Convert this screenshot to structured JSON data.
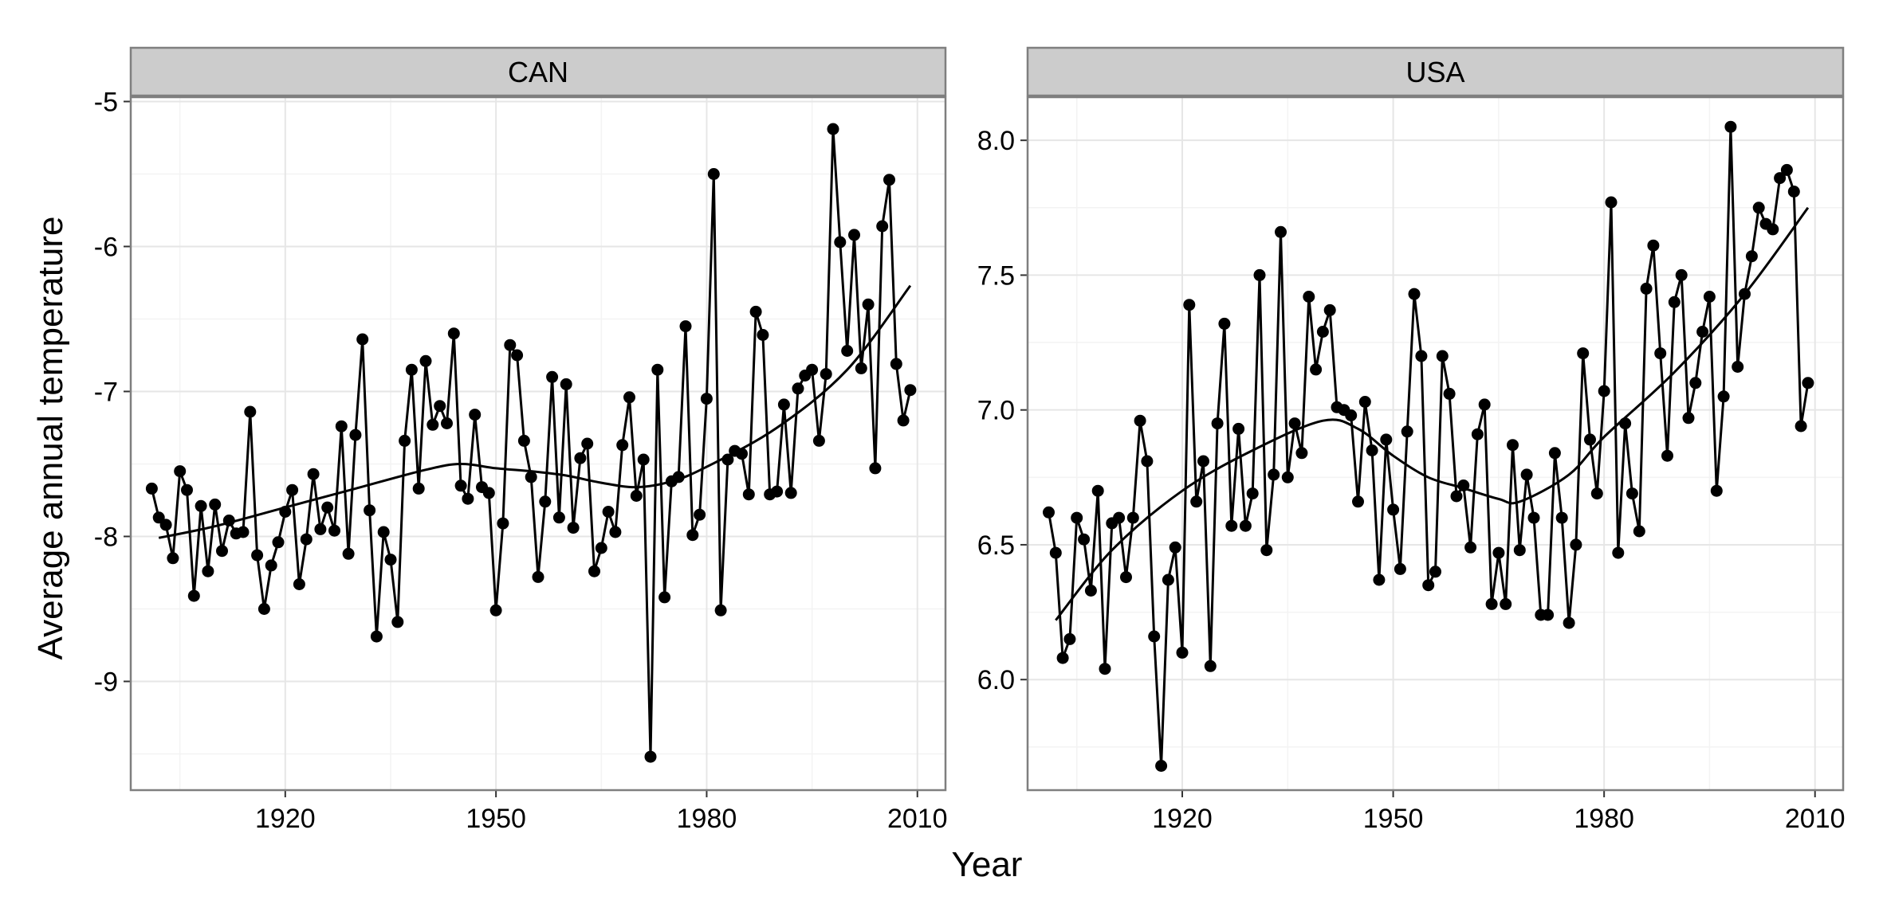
{
  "colors": {
    "background": "#ffffff",
    "panel_fill": "#ffffff",
    "panel_border": "#7f7f7f",
    "grid_major": "#e6e6e6",
    "grid_minor": "#f3f3f3",
    "strip_fill": "#cccccc",
    "strip_border": "#7f7f7f",
    "series_color": "#000000",
    "axis_tick": "#333333"
  },
  "chart_data": {
    "type": "line",
    "facet_layout": "1 row x 2 columns",
    "xlabel": "Year",
    "ylabel": "Average annual temperature",
    "legend": "none",
    "grid": true,
    "line_with_points": true,
    "smooth_trend": true,
    "x_ticks": [
      1920,
      1950,
      1980,
      2010
    ],
    "panels": [
      {
        "label": "CAN",
        "xlim": [
          1898,
          2014
        ],
        "ylim": [
          -9.75,
          -4.97
        ],
        "y_ticks": [
          -9,
          -8,
          -7,
          -6,
          -5
        ],
        "y_tick_labels": [
          "-9",
          "-8",
          "-7",
          "-6",
          "-5"
        ],
        "x": [
          1901,
          1902,
          1903,
          1904,
          1905,
          1906,
          1907,
          1908,
          1909,
          1910,
          1911,
          1912,
          1913,
          1914,
          1915,
          1916,
          1917,
          1918,
          1919,
          1920,
          1921,
          1922,
          1923,
          1924,
          1925,
          1926,
          1927,
          1928,
          1929,
          1930,
          1931,
          1932,
          1933,
          1934,
          1935,
          1936,
          1937,
          1938,
          1939,
          1940,
          1941,
          1942,
          1943,
          1944,
          1945,
          1946,
          1947,
          1948,
          1949,
          1950,
          1951,
          1952,
          1953,
          1954,
          1955,
          1956,
          1957,
          1958,
          1959,
          1960,
          1961,
          1962,
          1963,
          1964,
          1965,
          1966,
          1967,
          1968,
          1969,
          1970,
          1971,
          1972,
          1973,
          1974,
          1975,
          1976,
          1977,
          1978,
          1979,
          1980,
          1981,
          1982,
          1983,
          1984,
          1985,
          1986,
          1987,
          1988,
          1989,
          1990,
          1991,
          1992,
          1993,
          1994,
          1995,
          1996,
          1997,
          1998,
          1999,
          2000,
          2001,
          2002,
          2003,
          2004,
          2005,
          2006,
          2007,
          2008,
          2009
        ],
        "values": [
          -7.67,
          -7.87,
          -7.92,
          -8.15,
          -7.55,
          -7.68,
          -8.41,
          -7.79,
          -8.24,
          -7.78,
          -8.1,
          -7.89,
          -7.98,
          -7.97,
          -7.14,
          -8.13,
          -8.5,
          -8.2,
          -8.04,
          -7.83,
          -7.68,
          -8.33,
          -8.02,
          -7.57,
          -7.95,
          -7.8,
          -7.96,
          -7.24,
          -8.12,
          -7.3,
          -6.64,
          -7.82,
          -8.69,
          -7.97,
          -8.16,
          -8.59,
          -7.34,
          -6.85,
          -7.67,
          -6.79,
          -7.23,
          -7.1,
          -7.22,
          -6.6,
          -7.65,
          -7.74,
          -7.16,
          -7.66,
          -7.7,
          -8.51,
          -7.91,
          -6.68,
          -6.75,
          -7.34,
          -7.59,
          -8.28,
          -7.76,
          -6.9,
          -7.87,
          -6.95,
          -7.94,
          -7.46,
          -7.36,
          -8.24,
          -8.08,
          -7.83,
          -7.97,
          -7.37,
          -7.04,
          -7.72,
          -7.47,
          -9.52,
          -6.85,
          -8.42,
          -7.62,
          -7.59,
          -6.55,
          -7.99,
          -7.85,
          -7.05,
          -5.5,
          -8.51,
          -7.47,
          -7.41,
          -7.43,
          -7.71,
          -6.45,
          -6.61,
          -7.71,
          -7.69,
          -7.09,
          -7.7,
          -6.98,
          -6.89,
          -6.85,
          -7.34,
          -6.88,
          -5.19,
          -5.97,
          -6.72,
          -5.92,
          -6.84,
          -6.4,
          -7.53,
          -5.86,
          -5.54,
          -6.81,
          -7.2,
          -6.99
        ],
        "trend": {
          "x": [
            1902,
            1910,
            1920,
            1930,
            1940,
            1945,
            1950,
            1955,
            1960,
            1965,
            1970,
            1975,
            1980,
            1990,
            2000,
            2009
          ],
          "values": [
            -8.01,
            -7.93,
            -7.8,
            -7.67,
            -7.54,
            -7.5,
            -7.53,
            -7.55,
            -7.58,
            -7.63,
            -7.66,
            -7.62,
            -7.52,
            -7.25,
            -6.85,
            -6.27
          ]
        }
      },
      {
        "label": "USA",
        "xlim": [
          1898,
          2014
        ],
        "ylim": [
          5.59,
          8.16
        ],
        "y_ticks": [
          6.0,
          6.5,
          7.0,
          7.5,
          8.0
        ],
        "y_tick_labels": [
          "6.0",
          "6.5",
          "7.0",
          "7.5",
          "8.0"
        ],
        "x": [
          1901,
          1902,
          1903,
          1904,
          1905,
          1906,
          1907,
          1908,
          1909,
          1910,
          1911,
          1912,
          1913,
          1914,
          1915,
          1916,
          1917,
          1918,
          1919,
          1920,
          1921,
          1922,
          1923,
          1924,
          1925,
          1926,
          1927,
          1928,
          1929,
          1930,
          1931,
          1932,
          1933,
          1934,
          1935,
          1936,
          1937,
          1938,
          1939,
          1940,
          1941,
          1942,
          1943,
          1944,
          1945,
          1946,
          1947,
          1948,
          1949,
          1950,
          1951,
          1952,
          1953,
          1954,
          1955,
          1956,
          1957,
          1958,
          1959,
          1960,
          1961,
          1962,
          1963,
          1964,
          1965,
          1966,
          1967,
          1968,
          1969,
          1970,
          1971,
          1972,
          1973,
          1974,
          1975,
          1976,
          1977,
          1978,
          1979,
          1980,
          1981,
          1982,
          1983,
          1984,
          1985,
          1986,
          1987,
          1988,
          1989,
          1990,
          1991,
          1992,
          1993,
          1994,
          1995,
          1996,
          1997,
          1998,
          1999,
          2000,
          2001,
          2002,
          2003,
          2004,
          2005,
          2006,
          2007,
          2008,
          2009
        ],
        "values": [
          6.62,
          6.47,
          6.08,
          6.15,
          6.6,
          6.52,
          6.33,
          6.7,
          6.04,
          6.58,
          6.6,
          6.38,
          6.6,
          6.96,
          6.81,
          6.16,
          5.68,
          6.37,
          6.49,
          6.1,
          7.39,
          6.66,
          6.81,
          6.05,
          6.95,
          7.32,
          6.57,
          6.93,
          6.57,
          6.69,
          7.5,
          6.48,
          6.76,
          7.66,
          6.75,
          6.95,
          6.84,
          7.42,
          7.15,
          7.29,
          7.37,
          7.01,
          7.0,
          6.98,
          6.66,
          7.03,
          6.85,
          6.37,
          6.89,
          6.63,
          6.41,
          6.92,
          7.43,
          7.2,
          6.35,
          6.4,
          7.2,
          7.06,
          6.68,
          6.72,
          6.49,
          6.91,
          7.02,
          6.28,
          6.47,
          6.28,
          6.87,
          6.48,
          6.76,
          6.6,
          6.24,
          6.24,
          6.84,
          6.6,
          6.21,
          6.5,
          7.21,
          6.89,
          6.69,
          7.07,
          7.77,
          6.47,
          6.95,
          6.69,
          6.55,
          7.45,
          7.61,
          7.21,
          6.83,
          7.4,
          7.5,
          6.97,
          7.1,
          7.29,
          7.42,
          6.7,
          7.05,
          8.05,
          7.16,
          7.43,
          7.57,
          7.75,
          7.69,
          7.67,
          7.86,
          7.89,
          7.81,
          6.94,
          7.1
        ],
        "trend": {
          "x": [
            1902,
            1910,
            1920,
            1930,
            1940,
            1945,
            1950,
            1955,
            1960,
            1965,
            1968,
            1975,
            1980,
            1990,
            2000,
            2009
          ],
          "values": [
            6.22,
            6.48,
            6.7,
            6.85,
            6.96,
            6.93,
            6.83,
            6.75,
            6.71,
            6.67,
            6.66,
            6.76,
            6.9,
            7.14,
            7.43,
            7.75
          ]
        }
      }
    ]
  }
}
